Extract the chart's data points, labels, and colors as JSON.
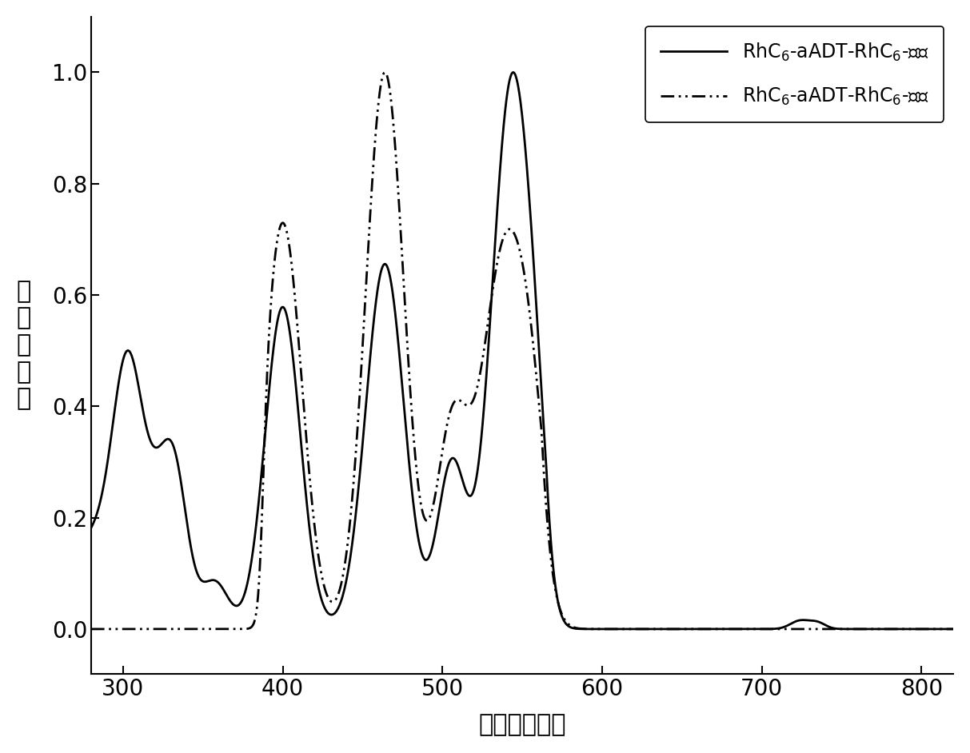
{
  "xlabel": "波长（纳米）",
  "ylabel": "归一化吸收",
  "xlim": [
    280,
    820
  ],
  "ylim": [
    -0.08,
    1.1
  ],
  "xticks": [
    300,
    400,
    500,
    600,
    700,
    800
  ],
  "yticks": [
    0.0,
    0.2,
    0.4,
    0.6,
    0.8,
    1.0
  ],
  "legend_film": "RhC$_6$-aADT-RhC$_6$-薄膜",
  "legend_solution": "RhC$_6$-aADT-RhC$_6$-溶液",
  "line_color": "#000000",
  "linewidth": 2.0
}
